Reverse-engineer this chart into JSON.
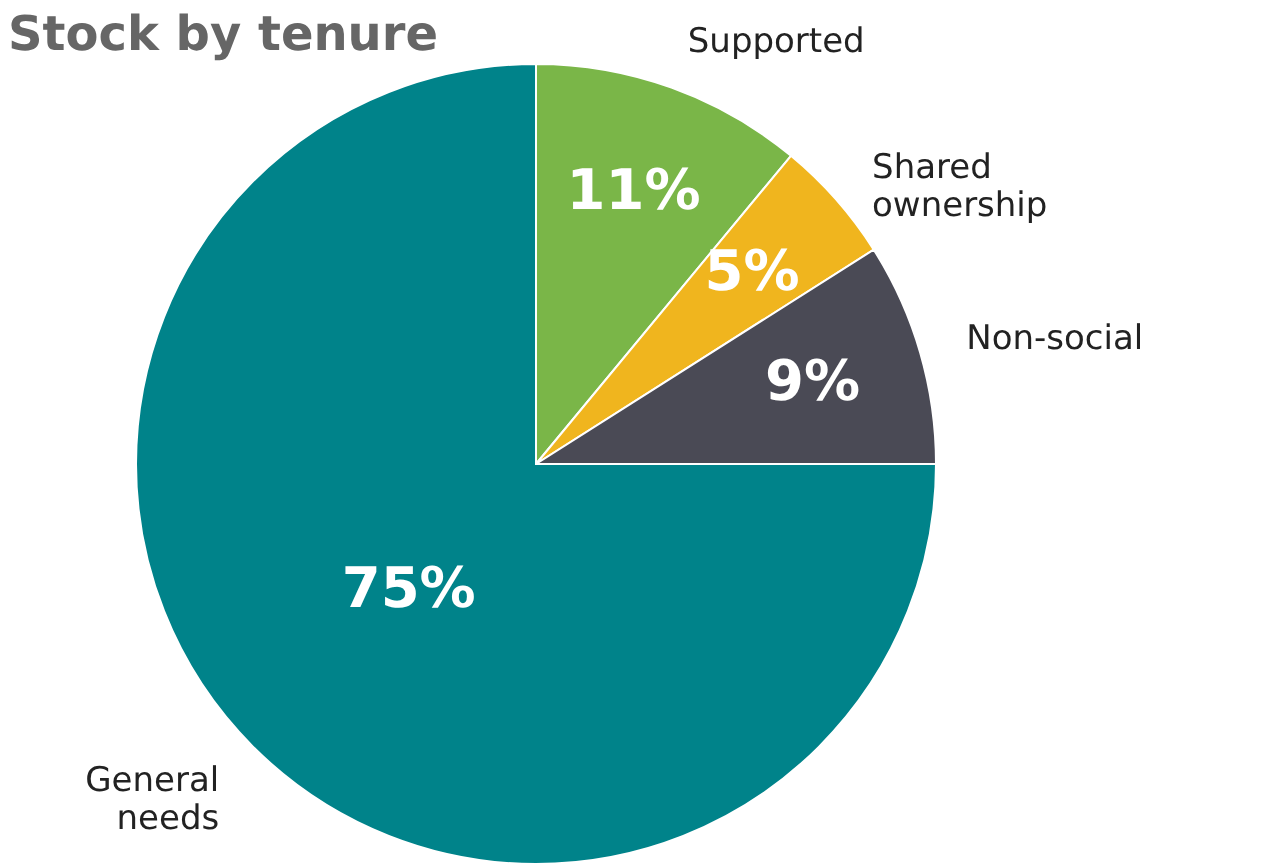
{
  "chart_data": {
    "type": "pie",
    "title": "Stock by tenure",
    "categories": [
      "Supported",
      "Shared ownership",
      "Non-social",
      "General needs"
    ],
    "values": [
      11,
      5,
      9,
      75
    ],
    "value_labels": [
      "11%",
      "5%",
      "9%",
      "75%"
    ],
    "colors": [
      "#7ab648",
      "#f0b51e",
      "#4a4a55",
      "#00838a"
    ]
  }
}
